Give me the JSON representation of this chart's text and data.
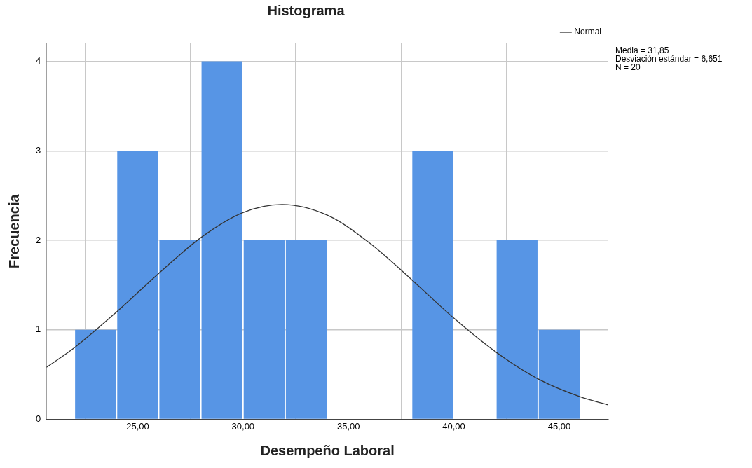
{
  "chart_data": {
    "type": "histogram",
    "title": "Histograma",
    "xlabel": "Desempeño Laboral",
    "ylabel": "Frecuencia",
    "bins": [
      22,
      24,
      26,
      28,
      30,
      32,
      34,
      36,
      38,
      40,
      42,
      44,
      46
    ],
    "values": [
      1,
      3,
      2,
      4,
      2,
      2,
      0,
      0,
      3,
      0,
      2,
      1
    ],
    "color": "#5795e5",
    "series": [
      {
        "name": "Normal",
        "type": "line",
        "color": "#333333",
        "x": [
          20.67,
          22,
          24,
          26,
          28,
          30,
          31.85,
          34,
          36,
          38,
          40,
          42,
          44,
          46,
          47.33
        ],
        "values": [
          0.58,
          0.8,
          1.2,
          1.63,
          2.03,
          2.31,
          2.4,
          2.28,
          1.97,
          1.56,
          1.13,
          0.75,
          0.45,
          0.25,
          0.16
        ]
      }
    ],
    "xlim": [
      20.67,
      47.33
    ],
    "xticks": [
      {
        "value": 25,
        "label": "25,00"
      },
      {
        "value": 30,
        "label": "30,00"
      },
      {
        "value": 35,
        "label": "35,00"
      },
      {
        "value": 40,
        "label": "40,00"
      },
      {
        "value": 45,
        "label": "45,00"
      }
    ],
    "ylim": [
      0,
      4.2
    ],
    "yticks": [
      0,
      1,
      2,
      3,
      4
    ],
    "grid": true,
    "legend": "top right",
    "marker": "none",
    "line_style": "solid",
    "annotations": [
      "Media = 31,85",
      "Desviación estándar = 6,651",
      "N = 20"
    ]
  }
}
